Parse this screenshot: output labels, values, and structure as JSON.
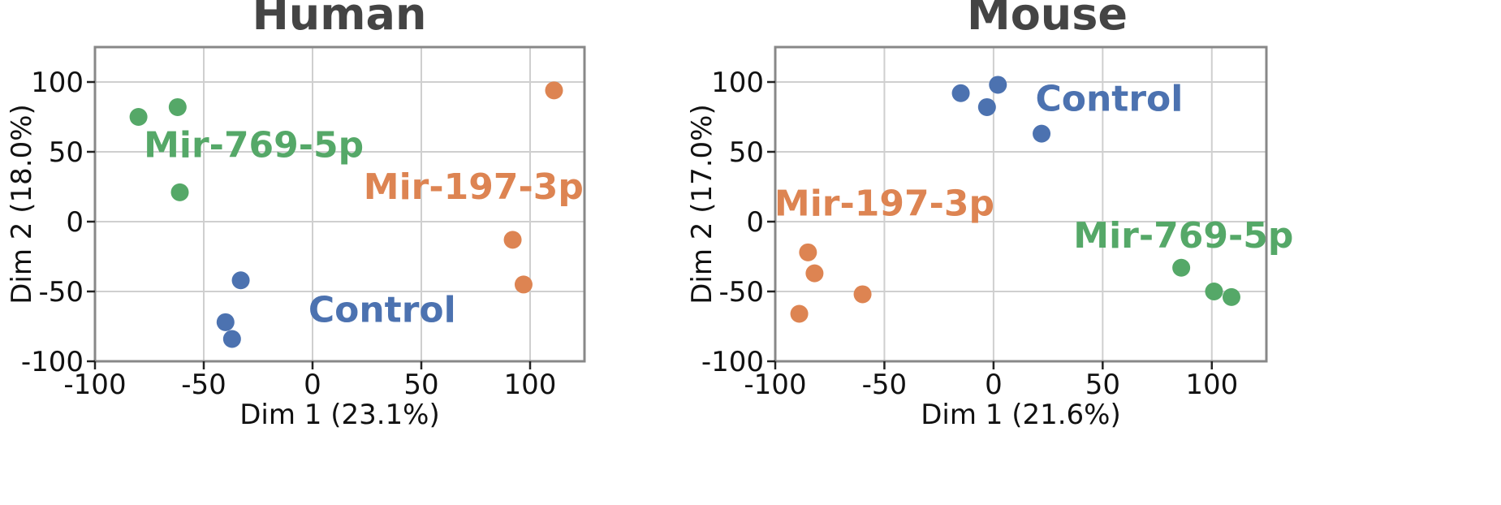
{
  "colors": {
    "Control": "#4c72b0",
    "Mir-197-3p": "#dd8452",
    "Mir-769-5p": "#55a868"
  },
  "chart_data": [
    {
      "type": "scatter",
      "title": "Human",
      "xlabel": "Dim 1 (23.1%)",
      "ylabel": "Dim 2 (18.0%)",
      "xlim": [
        -100,
        125
      ],
      "ylim": [
        -100,
        125
      ],
      "xticks": [
        -100,
        -50,
        0,
        50,
        100
      ],
      "yticks": [
        -100,
        -50,
        0,
        50,
        100
      ],
      "grid": true,
      "series": [
        {
          "name": "Control",
          "points": [
            [
              -33,
              -42
            ],
            [
              -40,
              -72
            ],
            [
              -37,
              -84
            ]
          ],
          "label_at": [
            32,
            -63
          ]
        },
        {
          "name": "Mir-197-3p",
          "points": [
            [
              111,
              94
            ],
            [
              92,
              -13
            ],
            [
              97,
              -45
            ]
          ],
          "label_at": [
            74,
            25
          ]
        },
        {
          "name": "Mir-769-5p",
          "points": [
            [
              -80,
              75
            ],
            [
              -62,
              82
            ],
            [
              -61,
              21
            ]
          ],
          "label_at": [
            -27,
            55
          ]
        }
      ]
    },
    {
      "type": "scatter",
      "title": "Mouse",
      "xlabel": "Dim 1 (21.6%)",
      "ylabel": "Dim 2 (17.0%)",
      "xlim": [
        -100,
        125
      ],
      "ylim": [
        -100,
        125
      ],
      "xticks": [
        -100,
        -50,
        0,
        50,
        100
      ],
      "yticks": [
        -100,
        -50,
        0,
        50,
        100
      ],
      "grid": true,
      "series": [
        {
          "name": "Control",
          "points": [
            [
              -15,
              92
            ],
            [
              -3,
              82
            ],
            [
              2,
              98
            ],
            [
              22,
              63
            ]
          ],
          "label_at": [
            53,
            88
          ]
        },
        {
          "name": "Mir-197-3p",
          "points": [
            [
              -85,
              -22
            ],
            [
              -82,
              -37
            ],
            [
              -89,
              -66
            ],
            [
              -60,
              -52
            ]
          ],
          "label_at": [
            -50,
            13
          ]
        },
        {
          "name": "Mir-769-5p",
          "points": [
            [
              86,
              -33
            ],
            [
              101,
              -50
            ],
            [
              109,
              -54
            ]
          ],
          "label_at": [
            87,
            -10
          ]
        }
      ]
    }
  ]
}
